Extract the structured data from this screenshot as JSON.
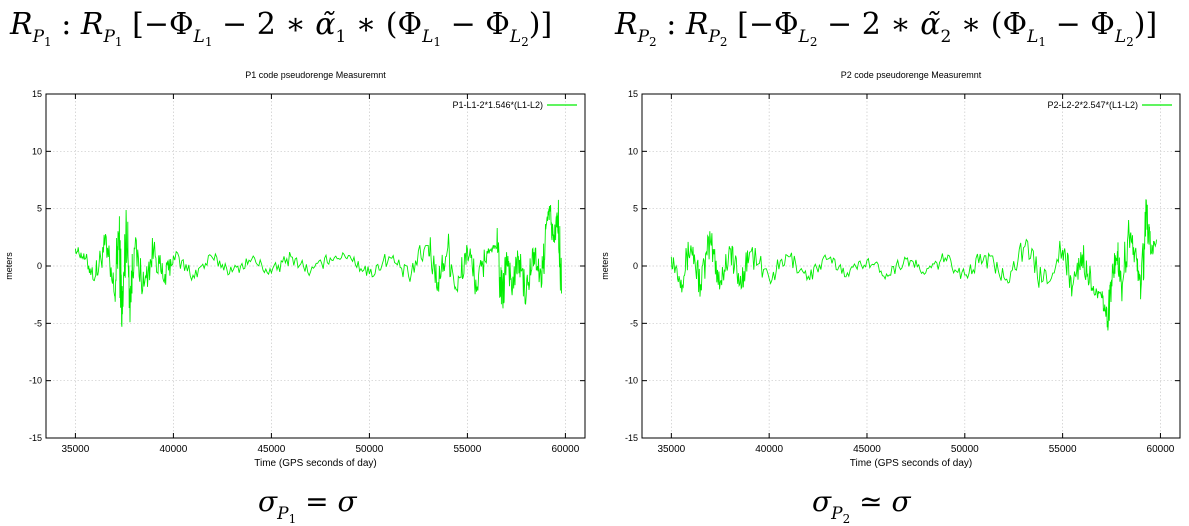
{
  "equations": {
    "top_left": {
      "R": "R",
      "sub": "P",
      "subsub": "1",
      "body_pre": "[−Φ",
      "L1": "L",
      "n1": "1",
      "mid": " − 2 ∗ ",
      "alpha": "α̃",
      "alpha_sub": "1",
      "rest": " ∗ (Φ",
      "close": ")]"
    },
    "top_right": {
      "R": "R",
      "sub": "P",
      "subsub": "2",
      "body_pre": "[−Φ",
      "mid": " − 2 ∗ ",
      "alpha": "α̃",
      "alpha_sub": "2",
      "rest": " ∗ (Φ",
      "close": ")]"
    },
    "bottom_left": {
      "sigma": "σ",
      "sub": "P",
      "subsub": "1",
      "rel": " = ",
      "rhs": "σ"
    },
    "bottom_right": {
      "sigma": "σ",
      "sub": "P",
      "subsub": "2",
      "rel": " ≃ ",
      "rhs": "σ"
    }
  },
  "chart_data": [
    {
      "type": "line",
      "title": "P1 code pseudorenge Measuremnt",
      "xlabel": "Time (GPS seconds of day)",
      "ylabel": "meters",
      "xlim": [
        33500,
        61000
      ],
      "ylim": [
        -15,
        15
      ],
      "xticks": [
        35000,
        40000,
        45000,
        50000,
        55000,
        60000
      ],
      "yticks": [
        -15,
        -10,
        -5,
        0,
        5,
        10,
        15
      ],
      "grid": true,
      "legend_position": "top-right",
      "series": [
        {
          "name": "P1-L1-2*1.546*(L1-L2)",
          "color": "#00ee00",
          "x": [
            35000,
            35500,
            36000,
            36500,
            37000,
            37200,
            37400,
            37600,
            37800,
            38000,
            38500,
            39000,
            39500,
            40000,
            41000,
            42000,
            43000,
            44000,
            45000,
            46000,
            47000,
            48000,
            49000,
            50000,
            51000,
            52000,
            53000,
            53500,
            54000,
            54500,
            55000,
            55500,
            56000,
            56500,
            56800,
            57000,
            57300,
            57600,
            58000,
            58400,
            58800,
            59000,
            59200,
            59400,
            59600,
            59800
          ],
          "y": [
            1.5,
            0.6,
            -1.0,
            1.8,
            -2.6,
            2.9,
            -4.2,
            3.6,
            -2.8,
            1.6,
            -1.8,
            1.5,
            -1.3,
            0.9,
            -0.8,
            0.7,
            -0.5,
            0.6,
            -0.6,
            0.8,
            -0.5,
            0.7,
            0.9,
            -0.7,
            0.8,
            -0.9,
            1.8,
            -1.4,
            1.6,
            -2.2,
            1.5,
            -1.8,
            1.3,
            1.6,
            -3.2,
            1.2,
            -2.0,
            0.8,
            -2.6,
            1.2,
            -1.5,
            3.2,
            4.9,
            2.1,
            4.4,
            -2.4
          ]
        }
      ]
    },
    {
      "type": "line",
      "title": "P2 code pseudorenge Measuremnt",
      "xlabel": "Time (GPS seconds of day)",
      "ylabel": "meters",
      "xlim": [
        33500,
        61000
      ],
      "ylim": [
        -15,
        15
      ],
      "xticks": [
        35000,
        40000,
        45000,
        50000,
        55000,
        60000
      ],
      "yticks": [
        -15,
        -10,
        -5,
        0,
        5,
        10,
        15
      ],
      "grid": true,
      "legend_position": "top-right",
      "series": [
        {
          "name": "P2-L2-2*2.547*(L1-L2)",
          "color": "#00ee00",
          "x": [
            35000,
            35500,
            36000,
            36500,
            37000,
            37500,
            38000,
            38500,
            39000,
            40000,
            41000,
            42000,
            43000,
            44000,
            45000,
            46000,
            47000,
            48000,
            49000,
            50000,
            51000,
            52000,
            53000,
            54000,
            55000,
            55500,
            56000,
            56500,
            57000,
            57300,
            57500,
            57800,
            58000,
            58400,
            58800,
            59000,
            59300,
            59500,
            59800
          ],
          "y": [
            0.8,
            -1.2,
            1.8,
            -1.6,
            2.1,
            -1.4,
            1.5,
            -1.6,
            1.2,
            -1.1,
            0.8,
            -0.9,
            0.6,
            -0.6,
            0.5,
            -0.7,
            0.6,
            -0.6,
            0.7,
            -0.8,
            0.9,
            -1.0,
            1.6,
            -1.3,
            1.4,
            -1.8,
            1.0,
            -1.9,
            -2.8,
            -4.8,
            -1.2,
            1.3,
            -1.5,
            2.8,
            0.4,
            -2.1,
            4.5,
            1.0,
            2.3
          ]
        }
      ]
    }
  ]
}
